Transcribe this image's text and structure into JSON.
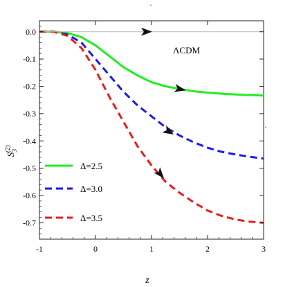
{
  "chart_data": {
    "type": "line",
    "xlabel": "z",
    "ylabel_main": "S",
    "ylabel_sub": "3",
    "ylabel_sup": "(2)",
    "xlim": [
      -1,
      3
    ],
    "ylim": [
      -0.76,
      0.04
    ],
    "xticks": [
      -1,
      0,
      1,
      2,
      3
    ],
    "xtick_labels": [
      "-1",
      "0",
      "1",
      "2",
      "3"
    ],
    "yticks": [
      0.0,
      -0.1,
      -0.2,
      -0.3,
      -0.4,
      -0.5,
      -0.6,
      -0.7
    ],
    "ytick_labels": [
      "0.0",
      "-0.1",
      "-0.2",
      "-0.3",
      "-0.4",
      "-0.5",
      "-0.6",
      "-0.7"
    ],
    "grid": false,
    "legend_position": "bottom-left",
    "annotations": [
      {
        "text": "ΛCDM"
      }
    ],
    "stray_marks": [
      ".",
      "."
    ],
    "series": [
      {
        "name": "Δ=2.5",
        "color": "#22ee22",
        "style": "solid",
        "x": [
          -1,
          -0.75,
          -0.5,
          -0.25,
          0,
          0.25,
          0.5,
          0.75,
          1,
          1.25,
          1.5,
          1.75,
          2,
          2.25,
          2.5,
          2.75,
          3
        ],
        "y": [
          0.0,
          0.0,
          -0.005,
          -0.02,
          -0.05,
          -0.09,
          -0.13,
          -0.16,
          -0.185,
          -0.2,
          -0.21,
          -0.218,
          -0.223,
          -0.227,
          -0.23,
          -0.232,
          -0.234
        ]
      },
      {
        "name": "Δ=3.0",
        "color": "#1a1aee",
        "style": "dashed",
        "x": [
          -1,
          -0.75,
          -0.5,
          -0.25,
          0,
          0.25,
          0.5,
          0.75,
          1,
          1.25,
          1.5,
          1.75,
          2,
          2.25,
          2.5,
          2.75,
          3
        ],
        "y": [
          0.0,
          0.0,
          -0.01,
          -0.04,
          -0.1,
          -0.16,
          -0.22,
          -0.27,
          -0.31,
          -0.35,
          -0.38,
          -0.405,
          -0.425,
          -0.44,
          -0.45,
          -0.458,
          -0.465
        ]
      },
      {
        "name": "Δ=3.5",
        "color": "#ee1a1a",
        "style": "dashed",
        "x": [
          -1,
          -0.75,
          -0.5,
          -0.25,
          0,
          0.25,
          0.5,
          0.75,
          1,
          1.25,
          1.5,
          1.75,
          2,
          2.25,
          2.5,
          2.75,
          3
        ],
        "y": [
          0.0,
          0.0,
          -0.015,
          -0.06,
          -0.14,
          -0.24,
          -0.33,
          -0.42,
          -0.49,
          -0.55,
          -0.59,
          -0.625,
          -0.655,
          -0.675,
          -0.688,
          -0.696,
          -0.7
        ]
      },
      {
        "name": "ΛCDM",
        "color": "#bbbbbb",
        "style": "solid",
        "x": [
          -1,
          3
        ],
        "y": [
          0.0,
          0.0
        ]
      }
    ],
    "arrows": [
      {
        "series": 3,
        "x": 0.9,
        "y": 0.0
      },
      {
        "series": 0,
        "x": 1.5,
        "y": -0.21
      },
      {
        "series": 1,
        "x": 1.3,
        "y": -0.365
      },
      {
        "series": 2,
        "x": 1.15,
        "y": -0.52
      }
    ]
  }
}
